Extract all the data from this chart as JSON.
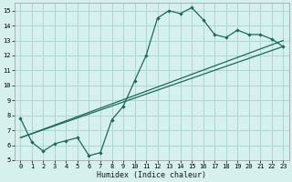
{
  "xlabel": "Humidex (Indice chaleur)",
  "bg_color": "#d6f0ee",
  "grid_color": "#aad8d3",
  "line_color": "#1a6b5a",
  "xlim": [
    -0.5,
    23.5
  ],
  "ylim": [
    5,
    15.5
  ],
  "yticks": [
    5,
    6,
    7,
    8,
    9,
    10,
    11,
    12,
    13,
    14,
    15
  ],
  "xticks": [
    0,
    1,
    2,
    3,
    4,
    5,
    6,
    7,
    8,
    9,
    10,
    11,
    12,
    13,
    14,
    15,
    16,
    17,
    18,
    19,
    20,
    21,
    22,
    23
  ],
  "curve_x": [
    0,
    1,
    2,
    3,
    4,
    5,
    6,
    7,
    8,
    9,
    10,
    11,
    12,
    13,
    14,
    15,
    16,
    17,
    18,
    19,
    20,
    21,
    22,
    23
  ],
  "curve_y": [
    7.8,
    6.2,
    5.6,
    6.1,
    6.3,
    6.5,
    5.3,
    5.5,
    7.7,
    8.6,
    10.3,
    12.0,
    14.5,
    15.0,
    14.8,
    15.2,
    14.4,
    13.4,
    13.2,
    13.7,
    13.4,
    13.4,
    13.1,
    12.6
  ],
  "line1_x": [
    0,
    23
  ],
  "line1_y": [
    6.5,
    13.0
  ],
  "line2_x": [
    0,
    23
  ],
  "line2_y": [
    6.5,
    12.6
  ]
}
